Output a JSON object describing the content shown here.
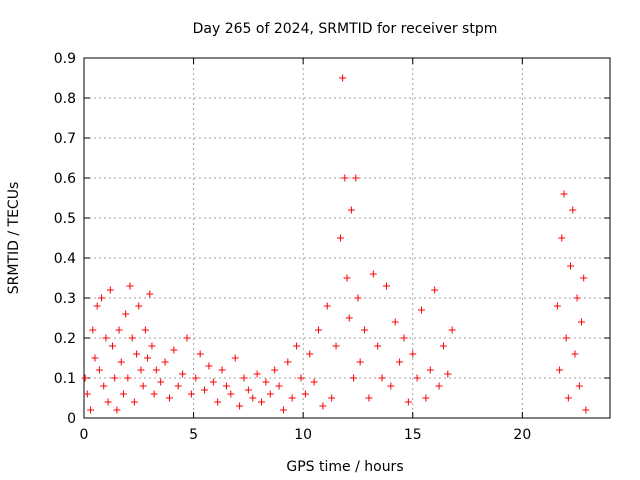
{
  "chart_data": {
    "type": "scatter",
    "title": "Day 265 of 2024, SRMTID for receiver stpm",
    "xlabel": "GPS time / hours",
    "ylabel": "SRMTID / TECUs",
    "xlim": [
      0,
      24
    ],
    "ylim": [
      0,
      0.9
    ],
    "x_ticks": [
      {
        "value": 0,
        "label": "0"
      },
      {
        "value": 5,
        "label": "5"
      },
      {
        "value": 10,
        "label": "10"
      },
      {
        "value": 15,
        "label": "15"
      },
      {
        "value": 20,
        "label": "20"
      }
    ],
    "y_ticks": [
      {
        "value": 0,
        "label": "0"
      },
      {
        "value": 0.1,
        "label": "0.1"
      },
      {
        "value": 0.2,
        "label": "0.2"
      },
      {
        "value": 0.3,
        "label": "0.3"
      },
      {
        "value": 0.4,
        "label": "0.4"
      },
      {
        "value": 0.5,
        "label": "0.5"
      },
      {
        "value": 0.6,
        "label": "0.6"
      },
      {
        "value": 0.7,
        "label": "0.7"
      },
      {
        "value": 0.8,
        "label": "0.8"
      },
      {
        "value": 0.9,
        "label": "0.9"
      }
    ],
    "grid": true,
    "marker": "plus",
    "color": "#ff0000",
    "series": [
      {
        "name": "SRMTID",
        "points": [
          [
            0.05,
            0.1
          ],
          [
            0.15,
            0.06
          ],
          [
            0.3,
            0.02
          ],
          [
            0.4,
            0.22
          ],
          [
            0.5,
            0.15
          ],
          [
            0.6,
            0.28
          ],
          [
            0.7,
            0.12
          ],
          [
            0.8,
            0.3
          ],
          [
            0.9,
            0.08
          ],
          [
            1.0,
            0.2
          ],
          [
            1.1,
            0.04
          ],
          [
            1.2,
            0.32
          ],
          [
            1.3,
            0.18
          ],
          [
            1.4,
            0.1
          ],
          [
            1.5,
            0.02
          ],
          [
            1.6,
            0.22
          ],
          [
            1.7,
            0.14
          ],
          [
            1.8,
            0.06
          ],
          [
            1.9,
            0.26
          ],
          [
            2.0,
            0.1
          ],
          [
            2.1,
            0.33
          ],
          [
            2.2,
            0.2
          ],
          [
            2.3,
            0.04
          ],
          [
            2.4,
            0.16
          ],
          [
            2.5,
            0.28
          ],
          [
            2.6,
            0.12
          ],
          [
            2.7,
            0.08
          ],
          [
            2.8,
            0.22
          ],
          [
            2.9,
            0.15
          ],
          [
            3.0,
            0.31
          ],
          [
            3.1,
            0.18
          ],
          [
            3.2,
            0.06
          ],
          [
            3.3,
            0.12
          ],
          [
            3.5,
            0.09
          ],
          [
            3.7,
            0.14
          ],
          [
            3.9,
            0.05
          ],
          [
            4.1,
            0.17
          ],
          [
            4.3,
            0.08
          ],
          [
            4.5,
            0.11
          ],
          [
            4.7,
            0.2
          ],
          [
            4.9,
            0.06
          ],
          [
            5.1,
            0.1
          ],
          [
            5.3,
            0.16
          ],
          [
            5.5,
            0.07
          ],
          [
            5.7,
            0.13
          ],
          [
            5.9,
            0.09
          ],
          [
            6.1,
            0.04
          ],
          [
            6.3,
            0.12
          ],
          [
            6.5,
            0.08
          ],
          [
            6.7,
            0.06
          ],
          [
            6.9,
            0.15
          ],
          [
            7.1,
            0.03
          ],
          [
            7.3,
            0.1
          ],
          [
            7.5,
            0.07
          ],
          [
            7.7,
            0.05
          ],
          [
            7.9,
            0.11
          ],
          [
            8.1,
            0.04
          ],
          [
            8.3,
            0.09
          ],
          [
            8.5,
            0.06
          ],
          [
            8.7,
            0.12
          ],
          [
            8.9,
            0.08
          ],
          [
            9.1,
            0.02
          ],
          [
            9.3,
            0.14
          ],
          [
            9.5,
            0.05
          ],
          [
            9.7,
            0.18
          ],
          [
            9.9,
            0.1
          ],
          [
            10.1,
            0.06
          ],
          [
            10.3,
            0.16
          ],
          [
            10.5,
            0.09
          ],
          [
            10.7,
            0.22
          ],
          [
            10.9,
            0.03
          ],
          [
            11.1,
            0.28
          ],
          [
            11.3,
            0.05
          ],
          [
            11.5,
            0.18
          ],
          [
            11.7,
            0.45
          ],
          [
            11.8,
            0.85
          ],
          [
            11.9,
            0.6
          ],
          [
            12.0,
            0.35
          ],
          [
            12.1,
            0.25
          ],
          [
            12.2,
            0.52
          ],
          [
            12.3,
            0.1
          ],
          [
            12.4,
            0.6
          ],
          [
            12.5,
            0.3
          ],
          [
            12.6,
            0.14
          ],
          [
            12.8,
            0.22
          ],
          [
            13.0,
            0.05
          ],
          [
            13.2,
            0.36
          ],
          [
            13.4,
            0.18
          ],
          [
            13.6,
            0.1
          ],
          [
            13.8,
            0.33
          ],
          [
            14.0,
            0.08
          ],
          [
            14.2,
            0.24
          ],
          [
            14.4,
            0.14
          ],
          [
            14.6,
            0.2
          ],
          [
            14.8,
            0.04
          ],
          [
            15.0,
            0.16
          ],
          [
            15.2,
            0.1
          ],
          [
            15.4,
            0.27
          ],
          [
            15.6,
            0.05
          ],
          [
            15.8,
            0.12
          ],
          [
            16.0,
            0.32
          ],
          [
            16.2,
            0.08
          ],
          [
            16.4,
            0.18
          ],
          [
            16.6,
            0.11
          ],
          [
            16.8,
            0.22
          ],
          [
            21.6,
            0.28
          ],
          [
            21.7,
            0.12
          ],
          [
            21.8,
            0.45
          ],
          [
            21.9,
            0.56
          ],
          [
            22.0,
            0.2
          ],
          [
            22.1,
            0.05
          ],
          [
            22.2,
            0.38
          ],
          [
            22.3,
            0.52
          ],
          [
            22.4,
            0.16
          ],
          [
            22.5,
            0.3
          ],
          [
            22.6,
            0.08
          ],
          [
            22.7,
            0.24
          ],
          [
            22.8,
            0.35
          ],
          [
            22.9,
            0.02
          ]
        ]
      }
    ]
  }
}
